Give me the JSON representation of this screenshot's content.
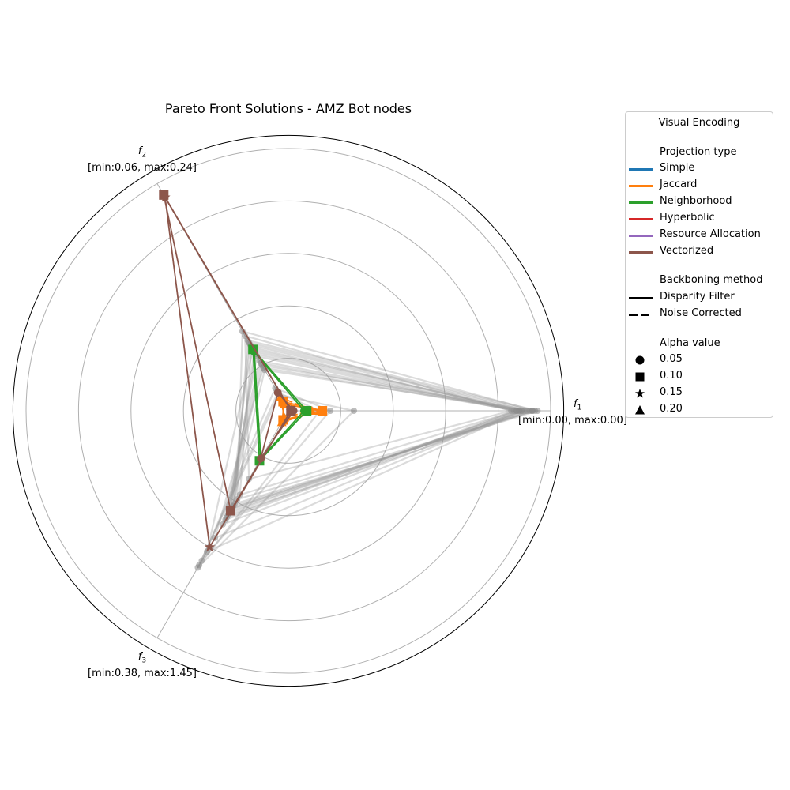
{
  "title": "Pareto Front Solutions - AMZ Bot nodes",
  "axes": [
    {
      "name": "f",
      "sub": "1",
      "range": "[min:0.00, max:0.00]"
    },
    {
      "name": "f",
      "sub": "2",
      "range": "[min:0.06, max:0.24]"
    },
    {
      "name": "f",
      "sub": "3",
      "range": "[min:0.38, max:1.45]"
    }
  ],
  "legend": {
    "title": "Visual Encoding",
    "projection_header": "Projection type",
    "projection": [
      {
        "label": "Simple",
        "color": "#1f77b4"
      },
      {
        "label": "Jaccard",
        "color": "#ff7f0e"
      },
      {
        "label": "Neighborhood",
        "color": "#2ca02c"
      },
      {
        "label": "Hyperbolic",
        "color": "#d62728"
      },
      {
        "label": "Resource Allocation",
        "color": "#9467bd"
      },
      {
        "label": "Vectorized",
        "color": "#8c564b"
      }
    ],
    "backbone_header": "Backboning method",
    "backbone": [
      {
        "label": "Disparity Filter",
        "style": "solid"
      },
      {
        "label": "Noise Corrected",
        "style": "dashed"
      }
    ],
    "alpha_header": "Alpha value",
    "alpha": [
      {
        "label": "0.05",
        "marker": "circle"
      },
      {
        "label": "0.10",
        "marker": "square"
      },
      {
        "label": "0.15",
        "marker": "star"
      },
      {
        "label": "0.20",
        "marker": "triangle"
      }
    ]
  },
  "chart_data": {
    "type": "radar",
    "title": "Pareto Front Solutions - AMZ Bot nodes",
    "axes": [
      "f1",
      "f2",
      "f3"
    ],
    "rlim": [
      0,
      1
    ],
    "grid": true,
    "legend_position": "right",
    "series": [
      {
        "projection": "Jaccard",
        "backbone": "Disparity Filter",
        "alpha": "0.10",
        "values": [
          0.13,
          0.04,
          0.04
        ]
      },
      {
        "projection": "Jaccard",
        "backbone": "Disparity Filter",
        "alpha": "0.20",
        "values": [
          0.12,
          0.03,
          0.05
        ]
      },
      {
        "projection": "Jaccard",
        "backbone": "Noise Corrected",
        "alpha": "0.20",
        "values": [
          0.09,
          0.06,
          0.03
        ]
      },
      {
        "projection": "Neighborhood",
        "backbone": "Disparity Filter",
        "alpha": "0.10",
        "values": [
          0.07,
          0.27,
          0.22
        ]
      },
      {
        "projection": "Neighborhood",
        "backbone": "Disparity Filter",
        "alpha": "0.05",
        "values": [
          0.06,
          0.26,
          0.21
        ]
      },
      {
        "projection": "Vectorized",
        "backbone": "Disparity Filter",
        "alpha": "0.10",
        "values": [
          0.01,
          0.95,
          0.44
        ]
      },
      {
        "projection": "Vectorized",
        "backbone": "Disparity Filter",
        "alpha": "0.15",
        "values": [
          0.01,
          0.94,
          0.6
        ]
      },
      {
        "projection": "Vectorized",
        "backbone": "Disparity Filter",
        "alpha": "0.05",
        "values": [
          0.02,
          0.08,
          0.21
        ]
      }
    ],
    "background_solutions": [
      [
        0.85,
        0.33,
        0.3
      ],
      [
        0.9,
        0.26,
        0.43
      ],
      [
        0.93,
        0.2,
        0.46
      ],
      [
        0.87,
        0.28,
        0.37
      ],
      [
        0.89,
        0.22,
        0.5
      ],
      [
        0.95,
        0.31,
        0.41
      ],
      [
        0.88,
        0.19,
        0.56
      ],
      [
        0.91,
        0.29,
        0.44
      ],
      [
        0.86,
        0.24,
        0.47
      ],
      [
        0.94,
        0.35,
        0.39
      ],
      [
        0.92,
        0.18,
        0.43
      ],
      [
        0.89,
        0.27,
        0.62
      ],
      [
        0.16,
        0.1,
        0.66
      ],
      [
        0.25,
        0.07,
        0.69
      ],
      [
        0.12,
        0.08,
        0.68
      ],
      [
        0.88,
        0.25,
        0.45
      ],
      [
        0.93,
        0.3,
        0.42
      ],
      [
        0.87,
        0.21,
        0.48
      ]
    ]
  }
}
